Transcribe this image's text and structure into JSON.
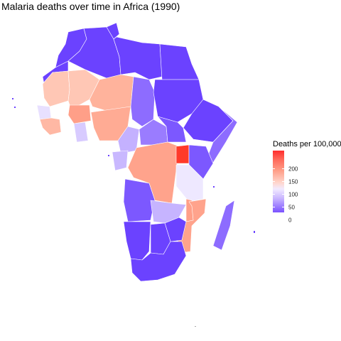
{
  "title": "Malaria deaths over time in Africa (1990)",
  "legend": {
    "title": "Deaths per 100,000",
    "ticks": [
      "200",
      "150",
      "100",
      "50",
      "0"
    ],
    "colors": {
      "low": "#6a3dff",
      "mid": "#ffffff",
      "high": "#ff2020"
    }
  },
  "regions": [
    {
      "name": "Morocco",
      "color": "#6b42ff"
    },
    {
      "name": "Western Sahara",
      "color": "#6b42ff"
    },
    {
      "name": "Algeria",
      "color": "#6b42ff"
    },
    {
      "name": "Tunisia",
      "color": "#6b42ff"
    },
    {
      "name": "Libya",
      "color": "#6b42ff"
    },
    {
      "name": "Egypt",
      "color": "#6b42ff"
    },
    {
      "name": "Mauritania",
      "color": "#ffc7b5"
    },
    {
      "name": "Mali",
      "color": "#ffc7b5"
    },
    {
      "name": "Niger",
      "color": "#ffb39c"
    },
    {
      "name": "Chad",
      "color": "#8d6cff"
    },
    {
      "name": "Sudan",
      "color": "#6b42ff"
    },
    {
      "name": "Senegal",
      "color": "#e8e0ff"
    },
    {
      "name": "Guinea",
      "color": "#ffb8a4"
    },
    {
      "name": "Burkina Faso",
      "color": "#ff9f88"
    },
    {
      "name": "Ghana",
      "color": "#d8cbff"
    },
    {
      "name": "Nigeria",
      "color": "#ffab94"
    },
    {
      "name": "Ethiopia",
      "color": "#6b42ff"
    },
    {
      "name": "Somalia",
      "color": "#8d6cff"
    },
    {
      "name": "Cameroon",
      "color": "#c4b1ff"
    },
    {
      "name": "Central African Republic",
      "color": "#9a7cff"
    },
    {
      "name": "South Sudan",
      "color": "#7c58ff"
    },
    {
      "name": "Gabon",
      "color": "#c9b8ff"
    },
    {
      "name": "DR Congo",
      "color": "#ffa38c"
    },
    {
      "name": "Uganda",
      "color": "#ff3a2a"
    },
    {
      "name": "Kenya",
      "color": "#7c58ff"
    },
    {
      "name": "Tanzania",
      "color": "#eee8ff"
    },
    {
      "name": "Angola",
      "color": "#7c58ff"
    },
    {
      "name": "Zambia",
      "color": "#c6b4ff"
    },
    {
      "name": "Malawi",
      "color": "#ff9f88"
    },
    {
      "name": "Mozambique",
      "color": "#ffa38c"
    },
    {
      "name": "Zimbabwe",
      "color": "#6b42ff"
    },
    {
      "name": "Namibia",
      "color": "#6b42ff"
    },
    {
      "name": "Botswana",
      "color": "#6b42ff"
    },
    {
      "name": "South Africa",
      "color": "#6b42ff"
    },
    {
      "name": "Madagascar",
      "color": "#8d6cff"
    }
  ]
}
